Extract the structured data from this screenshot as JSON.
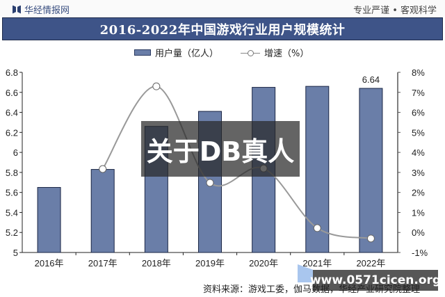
{
  "header": {
    "brand": "华经情报网",
    "slogan": "专业严谨 • 客观科学",
    "title": "2016-2022年中国游戏行业用户规模统计"
  },
  "legend": {
    "bar_label": "用户量（亿人）",
    "line_label": "增速（%）"
  },
  "overlay_text": "关于DB真人",
  "watermark_url": "www.0571cicen.org",
  "footer": {
    "source": "资料来源：游戏工委，伽马数据，华经产业研究院整理"
  },
  "colors": {
    "bar": "#6a7ea8",
    "bar_border": "#1a2544",
    "line": "#999999",
    "title_bg": "#3e5488"
  },
  "chart_data": {
    "type": "bar+line",
    "title": "2016-2022年中国游戏行业用户规模统计",
    "categories": [
      "2016年",
      "2017年",
      "2018年",
      "2019年",
      "2020年",
      "2021年",
      "2022年"
    ],
    "series": [
      {
        "name": "用户量（亿人）",
        "type": "bar",
        "axis": "left",
        "values": [
          5.65,
          5.83,
          6.26,
          6.41,
          6.65,
          6.66,
          6.64
        ]
      },
      {
        "name": "增速（%）",
        "type": "line",
        "axis": "right",
        "values": [
          null,
          3.17,
          7.3,
          2.48,
          3.2,
          0.22,
          -0.3
        ]
      }
    ],
    "data_labels": [
      {
        "category": "2022年",
        "series": "用户量（亿人）",
        "text": "6.64"
      }
    ],
    "left_axis": {
      "ylim": [
        5,
        6.8
      ],
      "ticks": [
        "5",
        "5.2",
        "5.4",
        "5.6",
        "5.8",
        "6",
        "6.2",
        "6.4",
        "6.6",
        "6.8"
      ]
    },
    "right_axis": {
      "ylim": [
        -1,
        8
      ],
      "ticks": [
        "-1%",
        "0%",
        "1%",
        "2%",
        "3%",
        "4%",
        "5%",
        "6%",
        "7%",
        "8%"
      ]
    },
    "grid": false,
    "legend_position": "top"
  }
}
